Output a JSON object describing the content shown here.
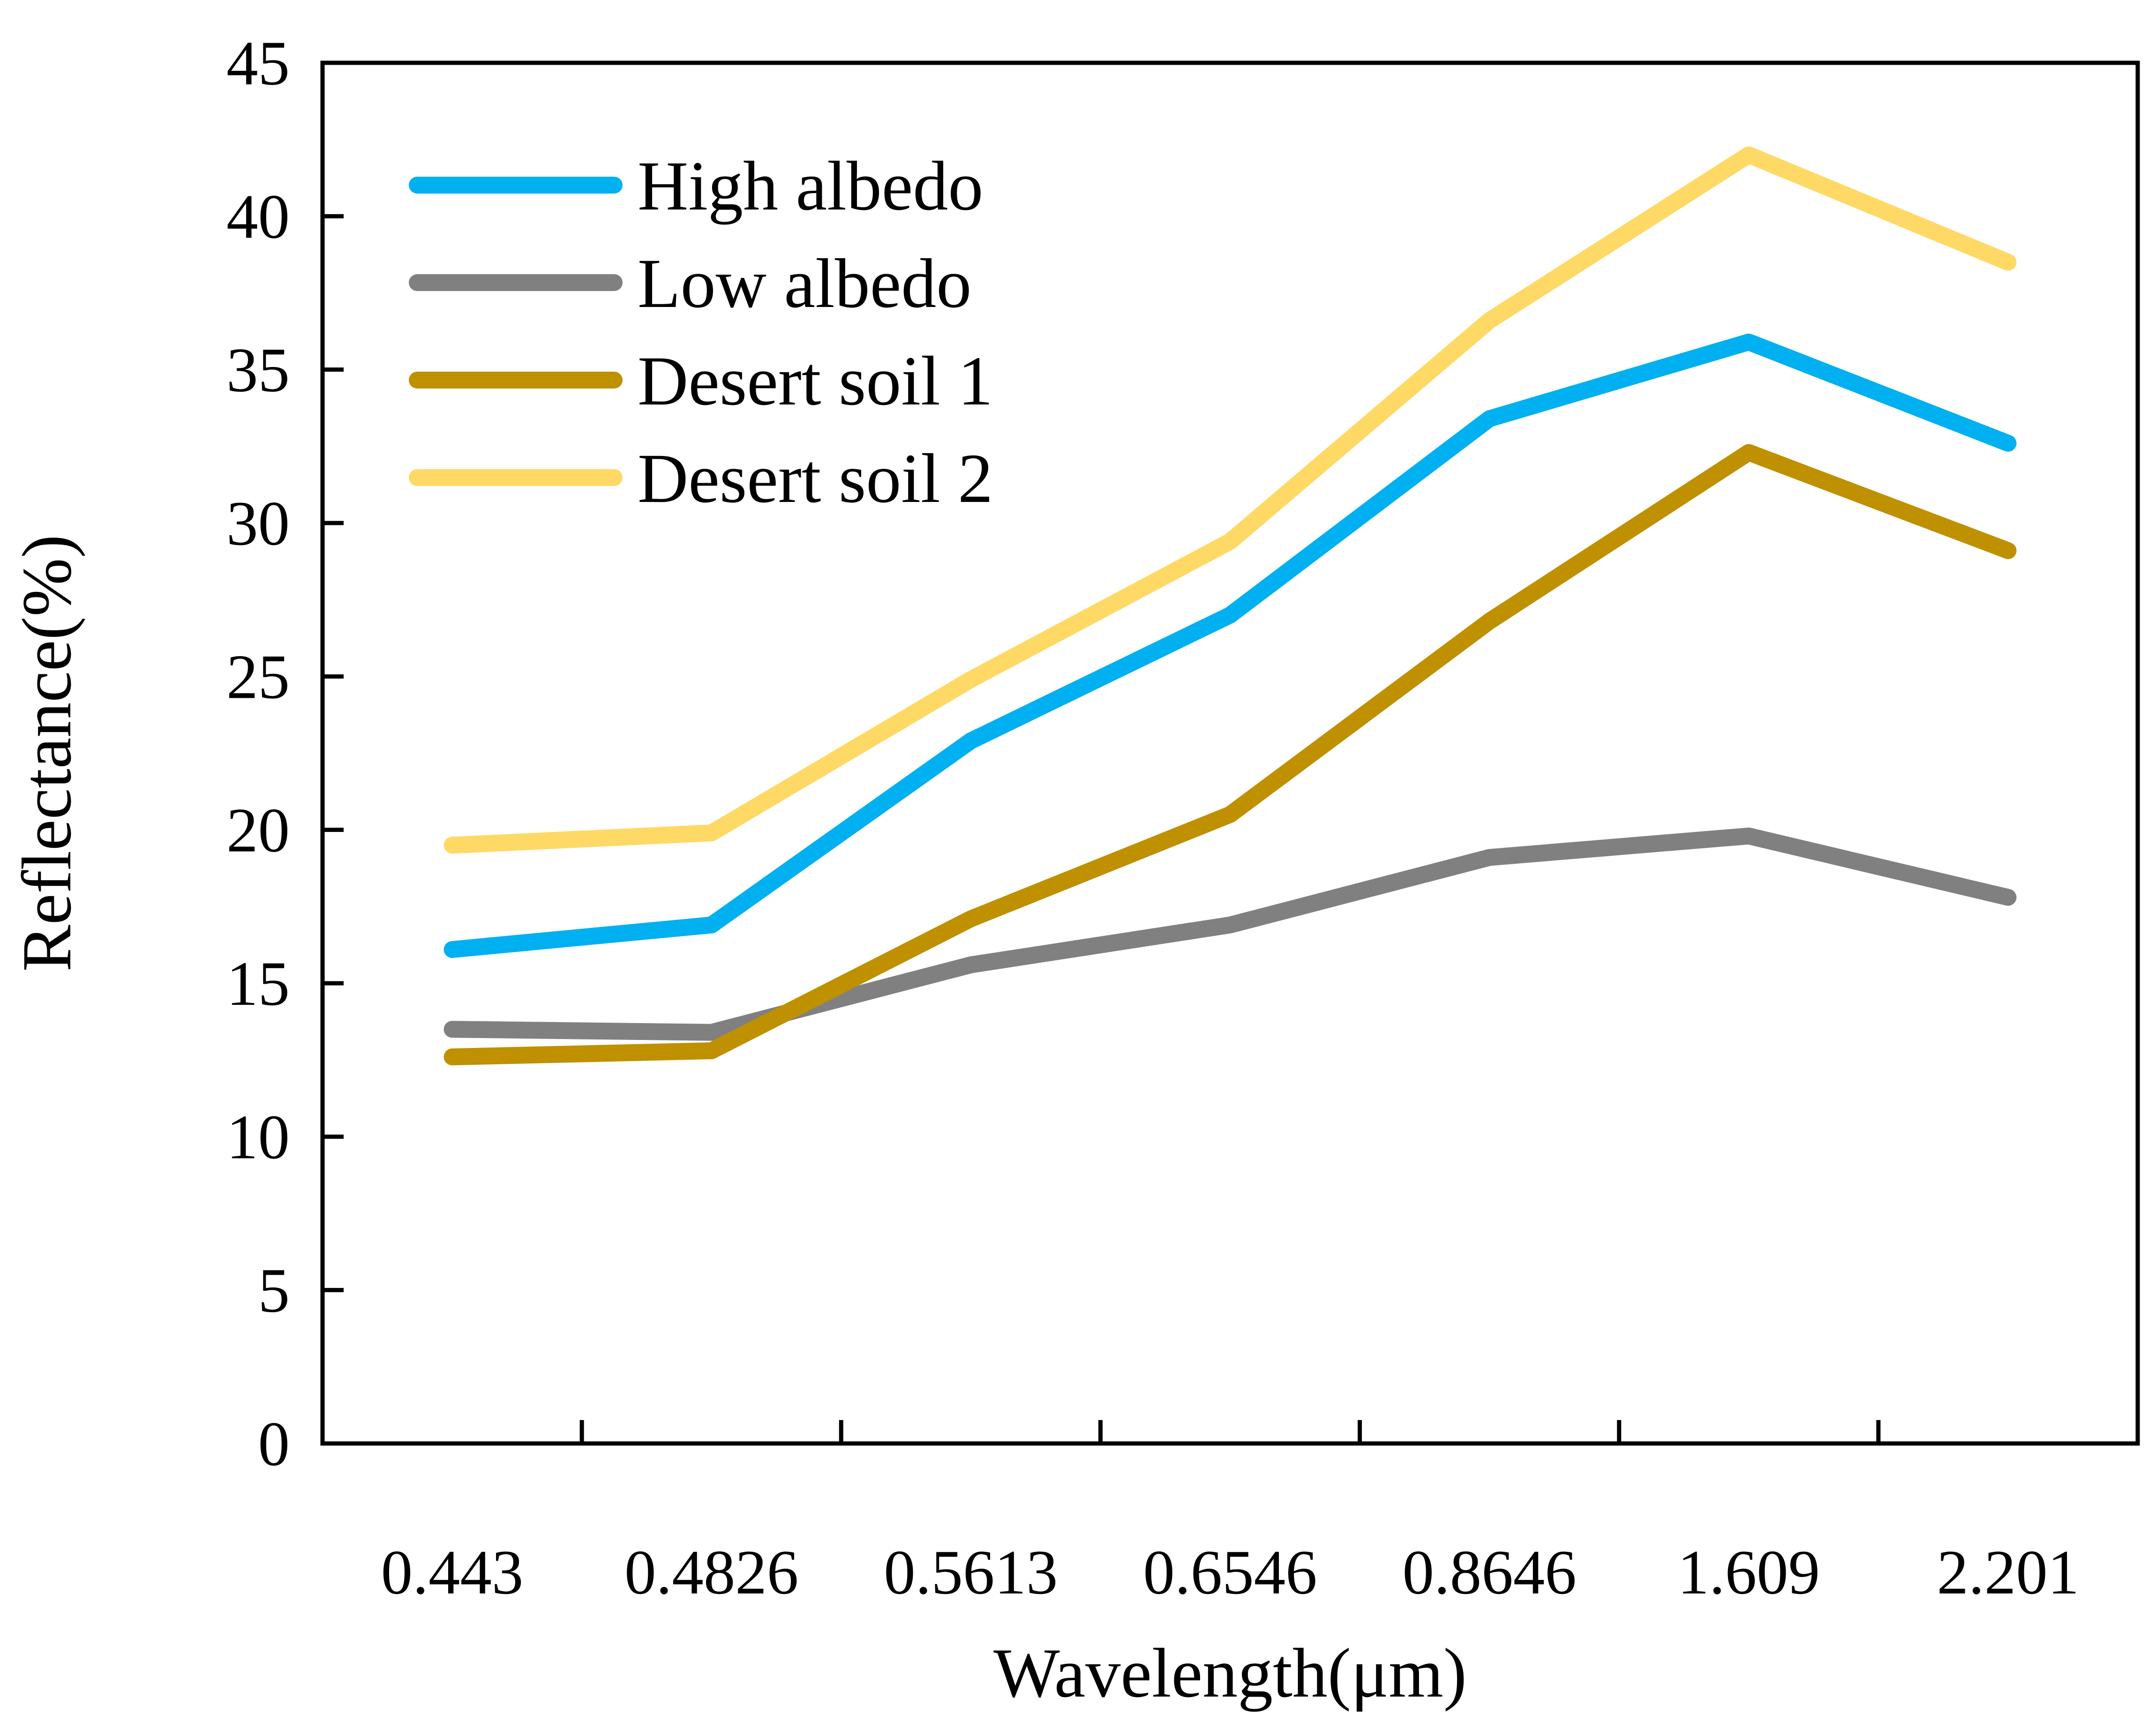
{
  "chart_data": {
    "type": "line",
    "title": "",
    "xlabel": "Wavelength(μm)",
    "ylabel": "Reflectance(%)",
    "categories": [
      "0.443",
      "0.4826",
      "0.5613",
      "0.6546",
      "0.8646",
      "1.609",
      "2.201"
    ],
    "ylim": [
      0,
      45
    ],
    "yticks": [
      0,
      5,
      10,
      15,
      20,
      25,
      30,
      35,
      40,
      45
    ],
    "grid": false,
    "legend_position": "top-left",
    "series": [
      {
        "name": "High albedo",
        "color": "#00b0f0",
        "values": [
          16.1,
          16.9,
          22.9,
          27.0,
          33.4,
          35.9,
          32.6
        ]
      },
      {
        "name": "Low albedo",
        "color": "#808080",
        "values": [
          13.5,
          13.4,
          15.6,
          16.9,
          19.1,
          19.8,
          17.8
        ]
      },
      {
        "name": "Desert soil 1",
        "color": "#bf9000",
        "values": [
          12.6,
          12.8,
          17.1,
          20.5,
          26.8,
          32.3,
          29.1
        ]
      },
      {
        "name": "Desert soil 2",
        "color": "#ffd966",
        "values": [
          19.5,
          19.9,
          24.9,
          29.4,
          36.6,
          42.0,
          38.5
        ]
      }
    ]
  }
}
